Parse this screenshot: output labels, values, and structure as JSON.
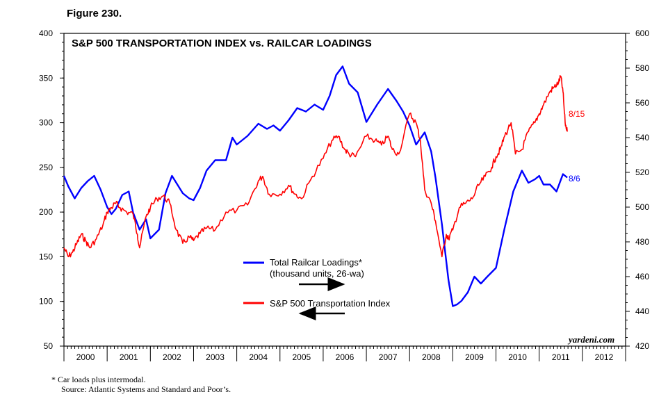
{
  "figure_label": "Figure 230.",
  "chart_data": {
    "type": "line",
    "title": "S&P 500 TRANSPORTATION INDEX vs. RAILCAR LOADINGS",
    "watermark": "yardeni.com",
    "x_labels": [
      "2000",
      "2001",
      "2002",
      "2003",
      "2004",
      "2005",
      "2006",
      "2007",
      "2008",
      "2009",
      "2010",
      "2011",
      "2012"
    ],
    "xlim": [
      2000.0,
      2013.0
    ],
    "left_axis": {
      "range": [
        50,
        400
      ],
      "ticks": [
        "50",
        "100",
        "150",
        "200",
        "250",
        "300",
        "350",
        "400"
      ],
      "label": "S&P 500 Transportation Index"
    },
    "right_axis": {
      "range": [
        420,
        600
      ],
      "ticks": [
        "420",
        "440",
        "460",
        "480",
        "500",
        "520",
        "540",
        "560",
        "580",
        "600"
      ],
      "label": "Total Railcar Loadings (thousand units, 26-wa)"
    },
    "series": [
      {
        "name": "Total Railcar Loadings*",
        "units": "(thousand units, 26-wa)",
        "axis": "right",
        "color": "#0000ff",
        "end_label": "8/6",
        "x": [
          2000.0,
          2000.1,
          2000.25,
          2000.4,
          2000.55,
          2000.7,
          2000.85,
          2001.0,
          2001.1,
          2001.2,
          2001.35,
          2001.5,
          2001.6,
          2001.75,
          2001.9,
          2002.0,
          2002.2,
          2002.35,
          2002.5,
          2002.75,
          2002.9,
          2003.0,
          2003.15,
          2003.3,
          2003.5,
          2003.75,
          2003.9,
          2004.0,
          2004.25,
          2004.5,
          2004.7,
          2004.85,
          2005.0,
          2005.2,
          2005.4,
          2005.6,
          2005.8,
          2006.0,
          2006.15,
          2006.3,
          2006.45,
          2006.6,
          2006.8,
          2007.0,
          2007.25,
          2007.5,
          2007.7,
          2007.85,
          2008.0,
          2008.15,
          2008.35,
          2008.5,
          2008.6,
          2008.75,
          2008.9,
          2009.0,
          2009.1,
          2009.2,
          2009.35,
          2009.5,
          2009.65,
          2009.8,
          2010.0,
          2010.2,
          2010.4,
          2010.6,
          2010.75,
          2010.9,
          2011.0,
          2011.1,
          2011.25,
          2011.4,
          2011.55,
          2011.65
        ],
        "values": [
          518,
          512,
          505,
          511,
          515,
          518,
          510,
          500,
          496,
          499,
          507,
          509,
          497,
          487,
          493,
          482,
          487,
          508,
          518,
          508,
          505,
          504,
          511,
          521,
          527,
          527,
          540,
          536,
          541,
          548,
          545,
          547,
          544,
          550,
          557,
          555,
          559,
          556,
          564,
          576,
          581,
          571,
          566,
          549,
          559,
          568,
          561,
          555,
          547,
          536,
          543,
          532,
          517,
          490,
          458,
          443,
          444,
          446,
          451,
          460,
          456,
          460,
          465,
          488,
          509,
          521,
          514,
          516,
          518,
          513,
          513,
          509,
          519,
          517
        ]
      },
      {
        "name": "S&P 500 Transportation Index",
        "axis": "left",
        "color": "#ff0000",
        "end_label": "8/15",
        "x": [
          2000.0,
          2000.1,
          2000.2,
          2000.3,
          2000.4,
          2000.5,
          2000.6,
          2000.75,
          2000.9,
          2001.0,
          2001.1,
          2001.2,
          2001.3,
          2001.45,
          2001.6,
          2001.7,
          2001.75,
          2001.9,
          2002.0,
          2002.15,
          2002.3,
          2002.45,
          2002.6,
          2002.75,
          2002.9,
          2003.0,
          2003.15,
          2003.3,
          2003.5,
          2003.75,
          2004.0,
          2004.25,
          2004.5,
          2004.6,
          2004.75,
          2005.0,
          2005.2,
          2005.35,
          2005.5,
          2005.75,
          2006.0,
          2006.2,
          2006.35,
          2006.5,
          2006.6,
          2006.75,
          2007.0,
          2007.2,
          2007.35,
          2007.5,
          2007.6,
          2007.75,
          2008.0,
          2008.15,
          2008.25,
          2008.35,
          2008.5,
          2008.6,
          2008.75,
          2008.85,
          2008.9,
          2009.0,
          2009.15,
          2009.3,
          2009.45,
          2009.6,
          2009.75,
          2009.9,
          2010.0,
          2010.1,
          2010.2,
          2010.35,
          2010.45,
          2010.6,
          2010.75,
          2010.9,
          2011.0,
          2011.1,
          2011.25,
          2011.35,
          2011.45,
          2011.5,
          2011.55,
          2011.6,
          2011.65
        ],
        "values": [
          160,
          150,
          155,
          165,
          175,
          168,
          160,
          170,
          185,
          200,
          205,
          210,
          205,
          200,
          198,
          175,
          160,
          195,
          205,
          215,
          218,
          210,
          180,
          165,
          172,
          168,
          176,
          182,
          180,
          200,
          202,
          208,
          235,
          240,
          220,
          220,
          230,
          220,
          215,
          240,
          260,
          280,
          285,
          270,
          265,
          262,
          285,
          280,
          275,
          285,
          270,
          265,
          310,
          300,
          280,
          225,
          210,
          190,
          150,
          175,
          170,
          180,
          205,
          210,
          215,
          230,
          240,
          250,
          262,
          270,
          285,
          300,
          265,
          270,
          290,
          300,
          310,
          320,
          335,
          340,
          345,
          352,
          335,
          300,
          290
        ]
      }
    ],
    "legend": {
      "railcar_label": "Total Railcar Loadings*",
      "railcar_units": "(thousand units, 26-wa)",
      "sp_label": "S&P 500 Transportation Index"
    },
    "annotations": {
      "railcar_end": "8/6",
      "sp_end": "8/15"
    }
  },
  "footnote_line1": "*   Car loads plus intermodal.",
  "footnote_line2": "Source: Atlantic Systems and Standard and Poor’s."
}
